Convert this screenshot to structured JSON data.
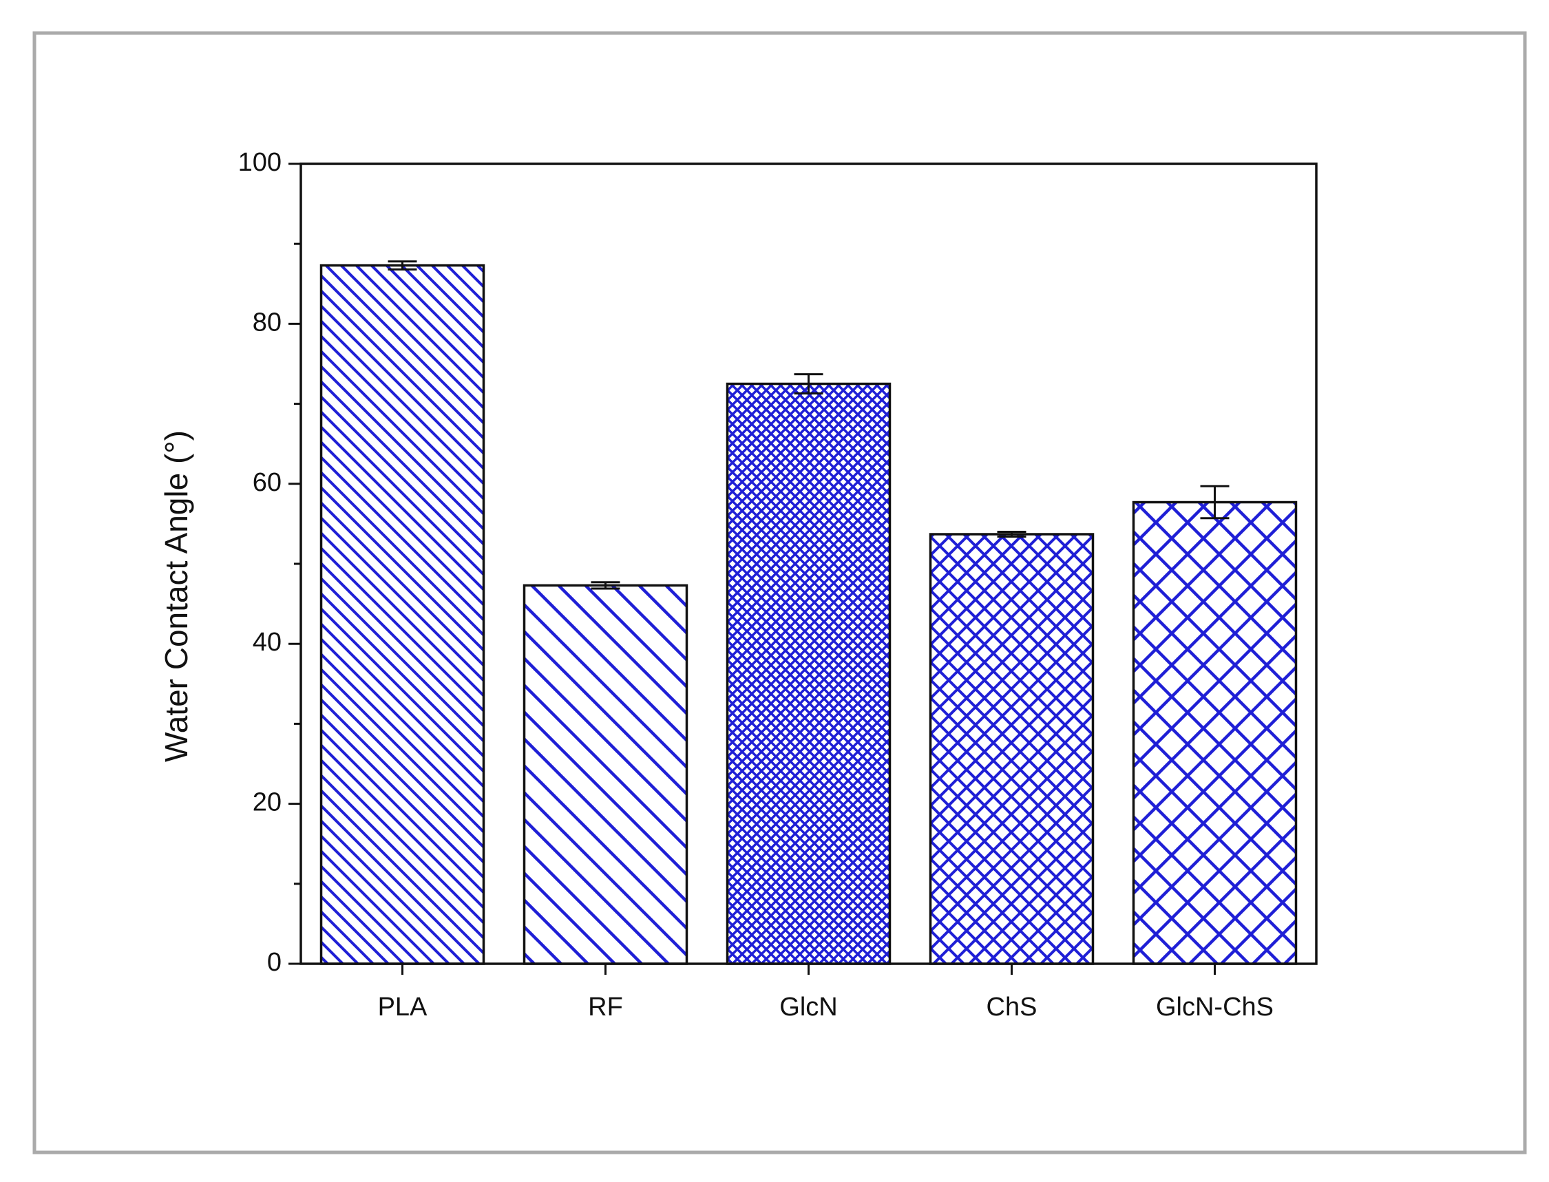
{
  "chart_data": {
    "type": "bar",
    "y_label": "Water Contact Angle (°)",
    "categories": [
      "PLA",
      "RF",
      "GlcN",
      "ChS",
      "GlcN-ChS"
    ],
    "values": [
      87.3,
      47.3,
      72.5,
      53.7,
      57.7
    ],
    "errors": [
      0.5,
      0.4,
      1.2,
      0.3,
      2.0
    ],
    "color": "#1f1fd6",
    "ylim": [
      0,
      100
    ],
    "yticks": [
      0,
      20,
      40,
      60,
      80,
      100
    ],
    "y_minor_ticks": [
      10,
      30,
      50,
      70,
      90
    ],
    "grid": false
  }
}
